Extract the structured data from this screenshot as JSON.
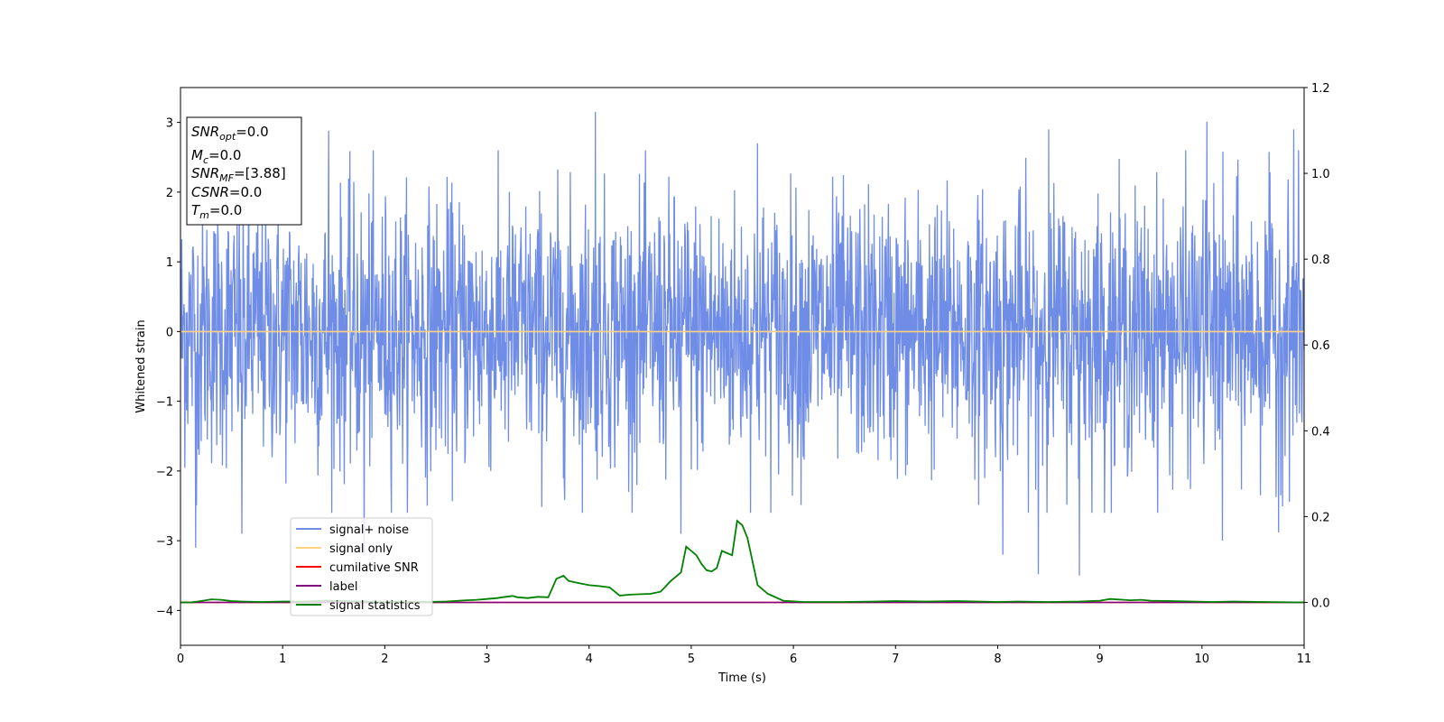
{
  "chart_data": {
    "type": "line",
    "xlabel": "Time (s)",
    "ylabel": "Whitened strain",
    "xlim": [
      0,
      11
    ],
    "ylim": [
      -4.5,
      3.5
    ],
    "y2lim": [
      -0.1,
      1.2
    ],
    "x_ticks": [
      0,
      1,
      2,
      3,
      4,
      5,
      6,
      7,
      8,
      9,
      10,
      11
    ],
    "y_ticks": [
      3,
      2,
      1,
      0,
      -1,
      -2,
      -3,
      -4
    ],
    "y_tick_labels": [
      "3",
      "2",
      "1",
      "0",
      "−1",
      "−2",
      "−3",
      "−4"
    ],
    "y2_ticks": [
      0.0,
      0.2,
      0.4,
      0.6,
      0.8,
      1.0,
      1.2
    ],
    "y2_tick_labels": [
      "0.0",
      "0.2",
      "0.4",
      "0.6",
      "0.8",
      "1.0",
      "1.2"
    ],
    "grid": false,
    "legend_position": "lower-left",
    "info_box": {
      "snr_opt": {
        "label": "SNR",
        "sub": "opt",
        "value": "=0.0"
      },
      "mc": {
        "label": "M",
        "sub": "c",
        "value": "=0.0"
      },
      "snr_mf": {
        "label": "SNR",
        "sub": "MF",
        "value": "=[3.88]"
      },
      "csnr": {
        "label": "CSNR",
        "sub": "",
        "value": "=0.0"
      },
      "tm": {
        "label": "T",
        "sub": "m",
        "value": "=0.0"
      }
    },
    "series": [
      {
        "name": "signal+ noise",
        "color": "#6f8de6",
        "axis": "left",
        "kind": "noise",
        "amplitude_envelope": {
          "typical_max": 2.0,
          "typical_min": -2.0
        },
        "notable_peaks": [
          {
            "x": 4.06,
            "y": 3.15
          },
          {
            "x": 10.05,
            "y": 3.01
          },
          {
            "x": 8.5,
            "y": 2.9
          },
          {
            "x": 1.45,
            "y": 2.88
          },
          {
            "x": 10.9,
            "y": 2.9
          },
          {
            "x": 5.65,
            "y": 2.7
          },
          {
            "x": 0.15,
            "y": -3.1
          },
          {
            "x": 8.4,
            "y": -3.48
          },
          {
            "x": 8.8,
            "y": -3.5
          },
          {
            "x": 8.05,
            "y": -3.2
          },
          {
            "x": 10.2,
            "y": -3.0
          },
          {
            "x": 1.8,
            "y": -3.2
          },
          {
            "x": 0.6,
            "y": -2.9
          },
          {
            "x": 10.75,
            "y": -2.88
          },
          {
            "x": 4.9,
            "y": -2.9
          }
        ]
      },
      {
        "name": "signal only",
        "color": "#ffd27f",
        "axis": "left",
        "x": [
          0,
          11
        ],
        "y": [
          0,
          0
        ]
      },
      {
        "name": "cumilative SNR",
        "color": "#ff0000",
        "axis": "right",
        "x": [
          0,
          11
        ],
        "y": [
          0,
          0
        ]
      },
      {
        "name": "label",
        "color": "#800080",
        "axis": "right",
        "x": [
          0,
          11
        ],
        "y": [
          0,
          0
        ]
      },
      {
        "name": "signal statistics",
        "color": "#008000",
        "axis": "right",
        "x": [
          0.0,
          0.1,
          0.2,
          0.3,
          0.4,
          0.5,
          0.6,
          0.8,
          1.0,
          1.2,
          1.4,
          1.6,
          1.8,
          2.0,
          2.2,
          2.4,
          2.6,
          2.8,
          2.9,
          3.0,
          3.1,
          3.15,
          3.25,
          3.3,
          3.4,
          3.5,
          3.6,
          3.68,
          3.75,
          3.8,
          3.9,
          4.0,
          4.1,
          4.2,
          4.3,
          4.4,
          4.5,
          4.6,
          4.7,
          4.8,
          4.9,
          4.95,
          5.05,
          5.1,
          5.15,
          5.2,
          5.25,
          5.3,
          5.4,
          5.45,
          5.5,
          5.55,
          5.65,
          5.75,
          5.9,
          6.1,
          6.3,
          6.5,
          6.8,
          7.0,
          7.3,
          7.6,
          7.8,
          8.0,
          8.2,
          8.5,
          8.8,
          9.0,
          9.1,
          9.3,
          9.4,
          9.5,
          9.7,
          9.9,
          10.1,
          10.3,
          10.6,
          11.0
        ],
        "y": [
          0.0,
          0.0,
          0.003,
          0.007,
          0.006,
          0.003,
          0.002,
          0.001,
          0.002,
          0.002,
          0.004,
          0.003,
          0.002,
          0.001,
          0.002,
          0.001,
          0.002,
          0.005,
          0.006,
          0.008,
          0.01,
          0.012,
          0.015,
          0.012,
          0.01,
          0.013,
          0.012,
          0.055,
          0.062,
          0.05,
          0.045,
          0.04,
          0.038,
          0.035,
          0.016,
          0.018,
          0.019,
          0.02,
          0.025,
          0.05,
          0.07,
          0.13,
          0.11,
          0.09,
          0.075,
          0.072,
          0.08,
          0.12,
          0.11,
          0.19,
          0.18,
          0.15,
          0.04,
          0.02,
          0.004,
          0.001,
          0.001,
          0.001,
          0.002,
          0.003,
          0.002,
          0.003,
          0.002,
          0.001,
          0.002,
          0.001,
          0.002,
          0.004,
          0.008,
          0.005,
          0.006,
          0.004,
          0.003,
          0.002,
          0.001,
          0.002,
          0.001,
          0.0
        ]
      }
    ]
  }
}
